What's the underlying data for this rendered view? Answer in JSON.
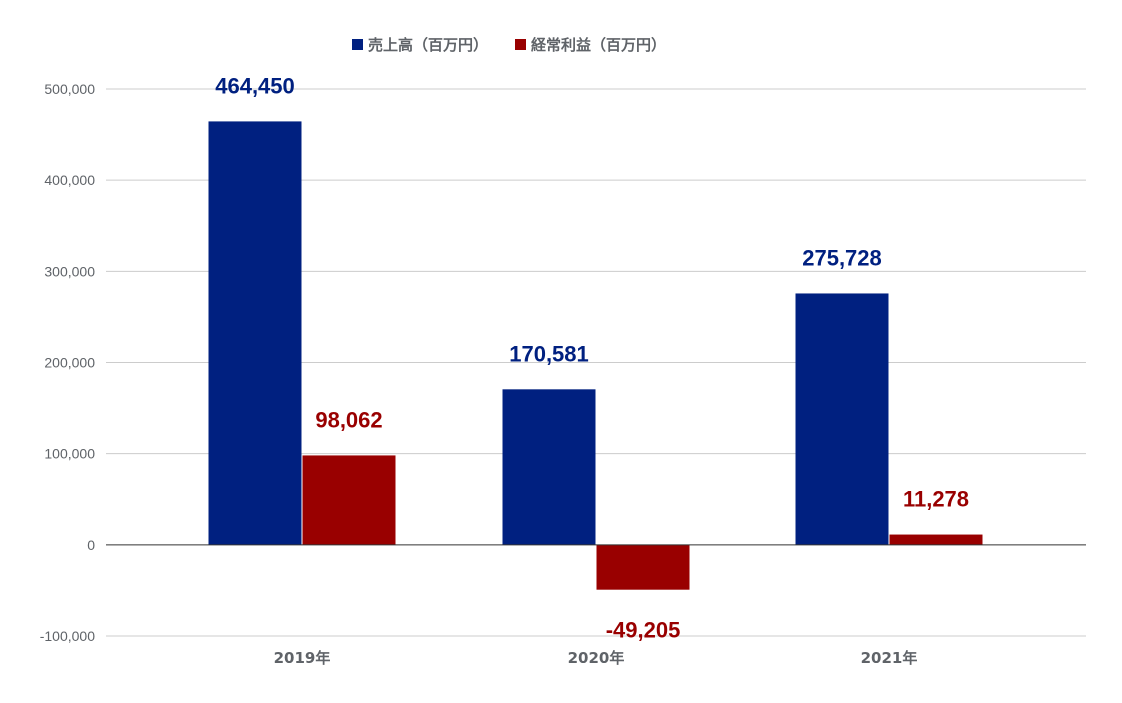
{
  "chart_data": {
    "type": "bar",
    "categories": [
      "2019年",
      "2020年",
      "2021年"
    ],
    "series": [
      {
        "name": "売上高（百万円）",
        "color": "#002080",
        "values": [
          464450,
          170581,
          275728
        ],
        "labels": [
          "464,450",
          "170,581",
          "275,728"
        ]
      },
      {
        "name": "経常利益（百万円）",
        "color": "#990000",
        "values": [
          98062,
          -49205,
          11278
        ],
        "labels": [
          "98,062",
          "-49,205",
          "11,278"
        ]
      }
    ],
    "y_ticks": [
      500000,
      400000,
      300000,
      200000,
      100000,
      0,
      -100000
    ],
    "y_tick_labels": [
      "500,000",
      "400,000",
      "300,000",
      "200,000",
      "100,000",
      "0",
      "-100,000"
    ],
    "ylim": [
      -100000,
      500000
    ],
    "grid": true,
    "legend_position": "top-center",
    "title": "",
    "xlabel": "",
    "ylabel": ""
  }
}
